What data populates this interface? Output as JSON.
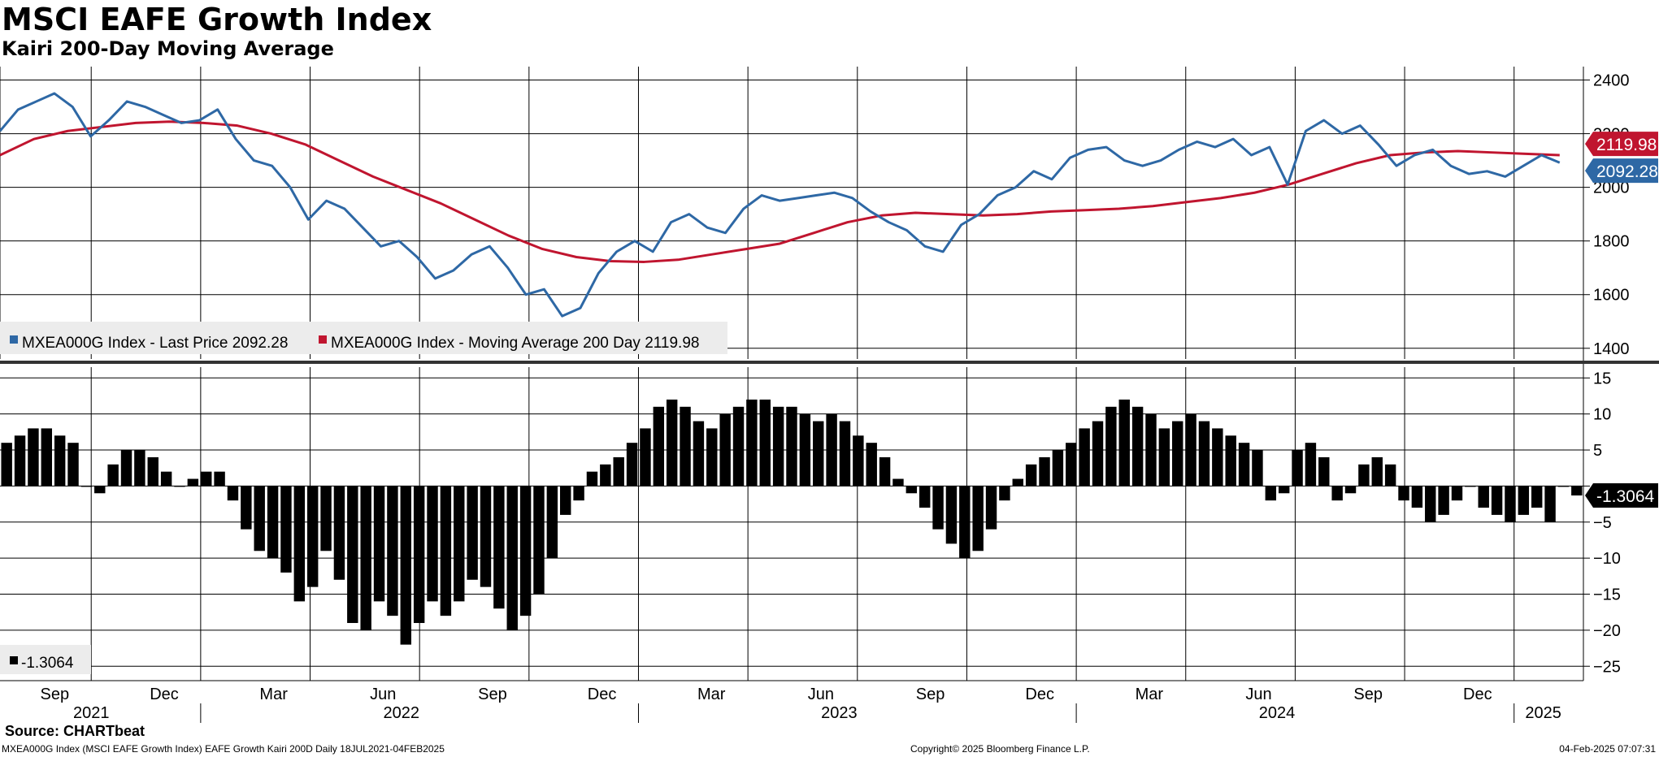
{
  "title": "MSCI EAFE Growth Index",
  "subtitle": "Kairi 200-Day Moving Average",
  "source": "Source: CHARTbeat",
  "footer": {
    "description": "MXEA000G Index (MSCI EAFE Growth Index) EAFE Growth Kairi 200D  Daily 18JUL2021-04FEB2025",
    "copyright": "Copyright© 2025 Bloomberg Finance L.P.",
    "timestamp": "04-Feb-2025 07:07:31"
  },
  "colors": {
    "price": "#2e68a5",
    "ma": "#c0152f",
    "kairi": "#000000",
    "grid": "#000000"
  },
  "chart_data": [
    {
      "type": "line",
      "panel": "upper",
      "ylim": [
        1360,
        2450
      ],
      "yticks": [
        1400,
        1600,
        1800,
        2000,
        2200,
        2400
      ],
      "legend": "bottom-left",
      "x_index_range": [
        0,
        63
      ],
      "series": [
        {
          "name": "MXEA000G Index - Last Price",
          "legend_label": "MXEA000G Index - Last Price 2092.28",
          "last_label": "2092.28",
          "color": "#2e68a5",
          "values": [
            2210,
            2290,
            2320,
            2350,
            2300,
            2190,
            2250,
            2320,
            2300,
            2270,
            2240,
            2250,
            2290,
            2180,
            2100,
            2080,
            2000,
            1880,
            1950,
            1920,
            1850,
            1780,
            1800,
            1740,
            1660,
            1690,
            1750,
            1780,
            1700,
            1600,
            1620,
            1520,
            1550,
            1680,
            1760,
            1800,
            1760,
            1870,
            1900,
            1850,
            1830,
            1920,
            1970,
            1950,
            1960,
            1970,
            1980,
            1960,
            1910,
            1870,
            1840,
            1780,
            1760,
            1860,
            1900,
            1970,
            2000,
            2060,
            2030,
            2110,
            2140,
            2150,
            2100,
            2080,
            2100,
            2140,
            2170,
            2150,
            2180,
            2120,
            2150,
            2010,
            2210,
            2250,
            2200,
            2230,
            2160,
            2080,
            2120,
            2140,
            2080,
            2050,
            2060,
            2040,
            2080,
            2120,
            2092
          ]
        },
        {
          "name": "MXEA000G Index - Moving Average 200 Day",
          "legend_label": "MXEA000G Index - Moving Average 200 Day 2119.98",
          "last_label": "2119.98",
          "color": "#c0152f",
          "values": [
            2120,
            2180,
            2210,
            2225,
            2240,
            2245,
            2240,
            2230,
            2200,
            2160,
            2100,
            2040,
            1990,
            1940,
            1880,
            1820,
            1770,
            1740,
            1725,
            1722,
            1730,
            1750,
            1770,
            1790,
            1830,
            1870,
            1895,
            1905,
            1900,
            1895,
            1900,
            1910,
            1915,
            1920,
            1930,
            1945,
            1960,
            1980,
            2010,
            2050,
            2090,
            2120,
            2130,
            2135,
            2130,
            2125,
            2120
          ]
        }
      ]
    },
    {
      "type": "bar",
      "panel": "lower",
      "ylim": [
        -27,
        16.5
      ],
      "yticks": [
        15,
        10,
        5,
        0,
        -5,
        -10,
        -15,
        -20,
        -25
      ],
      "legend_label": "-1.3064",
      "last_label": "-1.3064",
      "color": "#000000",
      "values": [
        6,
        7,
        8,
        8,
        7,
        6,
        0,
        -1,
        3,
        5,
        5,
        4,
        2,
        0,
        1,
        2,
        2,
        -2,
        -6,
        -9,
        -10,
        -12,
        -16,
        -14,
        -9,
        -13,
        -19,
        -20,
        -16,
        -18,
        -22,
        -19,
        -16,
        -18,
        -16,
        -13,
        -14,
        -17,
        -20,
        -18,
        -15,
        -10,
        -4,
        -2,
        2,
        3,
        4,
        6,
        8,
        11,
        12,
        11,
        9,
        8,
        10,
        11,
        12,
        12,
        11,
        11,
        10,
        9,
        10,
        9,
        7,
        6,
        4,
        1,
        -1,
        -3,
        -6,
        -8,
        -10,
        -9,
        -6,
        -2,
        1,
        3,
        4,
        5,
        6,
        8,
        9,
        11,
        12,
        11,
        10,
        8,
        9,
        10,
        9,
        8,
        7,
        6,
        5,
        -2,
        -1,
        5,
        6,
        4,
        -2,
        -1,
        3,
        4,
        3,
        -2,
        -3,
        -5,
        -4,
        -2,
        0,
        -3,
        -4,
        -5,
        -4,
        -3,
        -5,
        0,
        -1.3064
      ]
    }
  ],
  "x_axis": {
    "months": [
      {
        "label": "Sep",
        "i": 1.5
      },
      {
        "label": "Dec",
        "i": 4.5
      },
      {
        "label": "Mar",
        "i": 7.5
      },
      {
        "label": "Jun",
        "i": 10.5
      },
      {
        "label": "Sep",
        "i": 13.5
      },
      {
        "label": "Dec",
        "i": 16.5
      },
      {
        "label": "Mar",
        "i": 19.5
      },
      {
        "label": "Jun",
        "i": 22.5
      },
      {
        "label": "Sep",
        "i": 25.5
      },
      {
        "label": "Dec",
        "i": 28.5
      },
      {
        "label": "Mar",
        "i": 31.5
      },
      {
        "label": "Jun",
        "i": 34.5
      },
      {
        "label": "Sep",
        "i": 37.5
      },
      {
        "label": "Dec",
        "i": 40.5
      }
    ],
    "years": [
      {
        "label": "2021",
        "i": 2.5
      },
      {
        "label": "2022",
        "i": 11
      },
      {
        "label": "2023",
        "i": 23
      },
      {
        "label": "2024",
        "i": 35
      },
      {
        "label": "2025",
        "i": 42.3
      }
    ],
    "year_separators": [
      5.5,
      17.5,
      29.5,
      41.5
    ],
    "gridlines": [
      2.5,
      5.5,
      8.5,
      11.5,
      14.5,
      17.5,
      20.5,
      23.5,
      26.5,
      29.5,
      32.5,
      35.5,
      38.5,
      41.5
    ],
    "domain": [
      0,
      43.4
    ]
  }
}
